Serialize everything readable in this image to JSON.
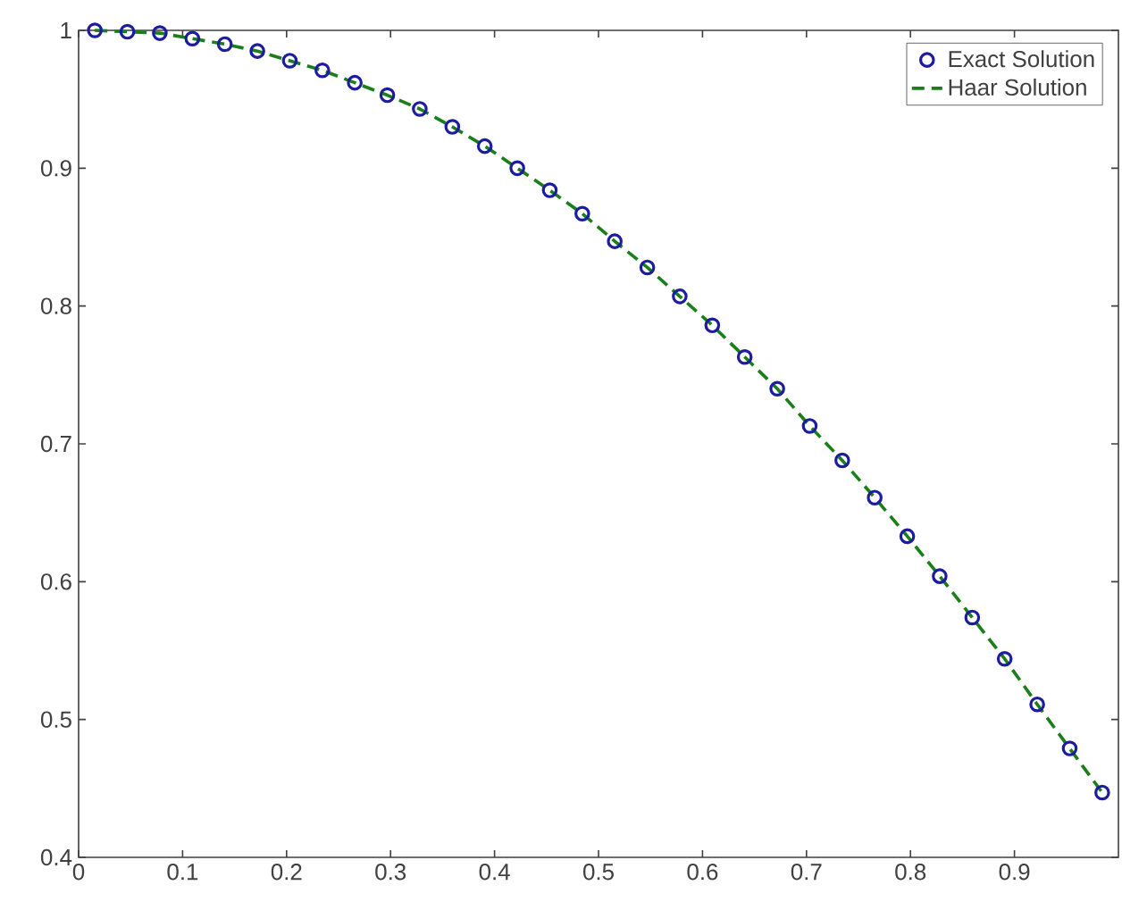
{
  "chart_data": {
    "type": "line",
    "xlim": [
      0,
      1
    ],
    "ylim": [
      0.4,
      1
    ],
    "xticks": [
      0,
      0.1,
      0.2,
      0.3,
      0.4,
      0.5,
      0.6,
      0.7,
      0.8,
      0.9
    ],
    "yticks": [
      0.4,
      0.5,
      0.6,
      0.7,
      0.8,
      0.9,
      1
    ],
    "legend": "top right",
    "grid": false,
    "x": [
      0.0156,
      0.0469,
      0.0781,
      0.1094,
      0.1406,
      0.1719,
      0.2031,
      0.2344,
      0.2656,
      0.2969,
      0.3281,
      0.3594,
      0.3906,
      0.4219,
      0.4531,
      0.4844,
      0.5156,
      0.5469,
      0.5781,
      0.6094,
      0.6406,
      0.6719,
      0.7031,
      0.7344,
      0.7656,
      0.7969,
      0.8281,
      0.8594,
      0.8906,
      0.9219,
      0.9531,
      0.9844
    ],
    "series": [
      {
        "name": "Exact Solution",
        "type": "scatter",
        "marker": "circle",
        "color": "#1c1ca0",
        "values": [
          1.0,
          0.999,
          0.998,
          0.994,
          0.99,
          0.985,
          0.978,
          0.971,
          0.962,
          0.953,
          0.943,
          0.93,
          0.916,
          0.9,
          0.884,
          0.867,
          0.847,
          0.828,
          0.807,
          0.786,
          0.763,
          0.74,
          0.713,
          0.688,
          0.661,
          0.633,
          0.604,
          0.574,
          0.544,
          0.511,
          0.479,
          0.447
        ]
      },
      {
        "name": "Haar Solution",
        "line_style": "dashed",
        "color": "#1a7f1a",
        "values": [
          1.0,
          0.999,
          0.998,
          0.994,
          0.99,
          0.985,
          0.978,
          0.971,
          0.962,
          0.953,
          0.943,
          0.93,
          0.916,
          0.9,
          0.884,
          0.867,
          0.847,
          0.828,
          0.807,
          0.786,
          0.763,
          0.74,
          0.713,
          0.688,
          0.661,
          0.633,
          0.604,
          0.574,
          0.544,
          0.511,
          0.479,
          0.447
        ]
      }
    ]
  }
}
